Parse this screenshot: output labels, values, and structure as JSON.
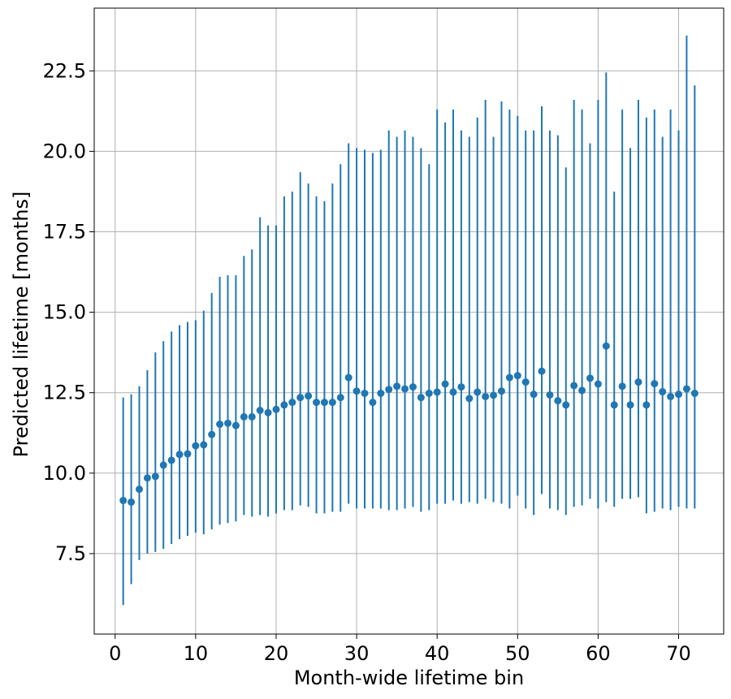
{
  "chart_data": {
    "type": "scatter",
    "title": "",
    "xlabel": "Month-wide lifetime bin",
    "ylabel": "Predicted lifetime [months]",
    "xlim": [
      -2.6,
      75.6
    ],
    "ylim": [
      5.0,
      24.45
    ],
    "xticks": [
      0,
      10,
      20,
      30,
      40,
      50,
      60,
      70
    ],
    "xtick_labels": [
      "0",
      "10",
      "20",
      "30",
      "40",
      "50",
      "60",
      "70"
    ],
    "yticks": [
      7.5,
      10.0,
      12.5,
      15.0,
      17.5,
      20.0,
      22.5
    ],
    "ytick_labels": [
      "7.5",
      "10.0",
      "12.5",
      "15.0",
      "17.5",
      "20.0",
      "22.5"
    ],
    "grid": true,
    "legend": "none",
    "color": "#1f77b4",
    "series": [
      {
        "x": [
          1,
          2,
          3,
          4,
          5,
          6,
          7,
          8,
          9,
          10,
          11,
          12,
          13,
          14,
          15,
          16,
          17,
          18,
          19,
          20,
          21,
          22,
          23,
          24,
          25,
          26,
          27,
          28,
          29,
          30,
          31,
          32,
          33,
          34,
          35,
          36,
          37,
          38,
          39,
          40,
          41,
          42,
          43,
          44,
          45,
          46,
          47,
          48,
          49,
          50,
          51,
          52,
          53,
          54,
          55,
          56,
          57,
          58,
          59,
          60,
          61,
          62,
          63,
          64,
          65,
          66,
          67,
          68,
          69,
          70,
          71,
          72
        ],
        "y": [
          9.15,
          9.1,
          9.5,
          9.85,
          9.9,
          10.25,
          10.4,
          10.58,
          10.6,
          10.85,
          10.88,
          11.2,
          11.52,
          11.55,
          11.48,
          11.75,
          11.75,
          11.95,
          11.88,
          11.98,
          12.12,
          12.2,
          12.35,
          12.4,
          12.2,
          12.2,
          12.2,
          12.35,
          12.97,
          12.55,
          12.48,
          12.2,
          12.48,
          12.6,
          12.7,
          12.62,
          12.68,
          12.35,
          12.48,
          12.52,
          12.77,
          12.52,
          12.68,
          12.32,
          12.52,
          12.38,
          12.42,
          12.55,
          12.97,
          13.03,
          12.83,
          12.45,
          13.17,
          12.43,
          12.25,
          12.12,
          12.72,
          12.57,
          12.95,
          12.77,
          13.95,
          12.12,
          12.7,
          12.12,
          12.83,
          12.12,
          12.78,
          12.53,
          12.38,
          12.45,
          12.62,
          12.48
        ],
        "err_low": [
          5.9,
          6.55,
          7.3,
          7.5,
          7.55,
          7.65,
          7.8,
          7.95,
          8.05,
          8.15,
          8.1,
          8.25,
          8.4,
          8.45,
          8.5,
          8.7,
          8.65,
          8.7,
          8.65,
          8.75,
          8.85,
          8.85,
          9.0,
          8.95,
          8.75,
          8.75,
          8.8,
          8.8,
          9.05,
          8.9,
          8.9,
          8.9,
          8.9,
          8.85,
          8.85,
          8.9,
          8.95,
          8.8,
          8.85,
          9.05,
          9.05,
          9.15,
          9.05,
          9.1,
          9.05,
          9.2,
          9.1,
          9.05,
          8.9,
          9.3,
          8.9,
          8.7,
          9.35,
          8.9,
          8.85,
          8.7,
          8.95,
          9.0,
          9.2,
          8.9,
          9.1,
          8.95,
          9.2,
          9.2,
          9.25,
          8.75,
          8.8,
          8.9,
          8.85,
          8.95,
          8.9,
          8.9
        ],
        "err_high": [
          12.35,
          12.45,
          12.7,
          13.2,
          13.75,
          14.1,
          14.4,
          14.6,
          14.7,
          14.75,
          15.05,
          15.6,
          16.1,
          16.15,
          16.15,
          16.75,
          16.95,
          17.95,
          17.7,
          17.7,
          18.6,
          18.75,
          19.35,
          19.0,
          18.6,
          18.45,
          19.0,
          19.6,
          20.25,
          20.1,
          20.05,
          19.95,
          20.05,
          20.65,
          20.45,
          20.65,
          20.45,
          20.1,
          19.6,
          21.3,
          20.9,
          21.3,
          20.65,
          20.45,
          21.05,
          21.6,
          20.45,
          21.55,
          21.3,
          21.1,
          20.65,
          20.65,
          21.4,
          20.65,
          20.5,
          19.5,
          21.6,
          21.3,
          20.25,
          21.6,
          22.45,
          18.75,
          21.3,
          20.1,
          21.6,
          21.05,
          21.3,
          20.45,
          21.3,
          20.65,
          23.6,
          22.05
        ]
      }
    ]
  }
}
